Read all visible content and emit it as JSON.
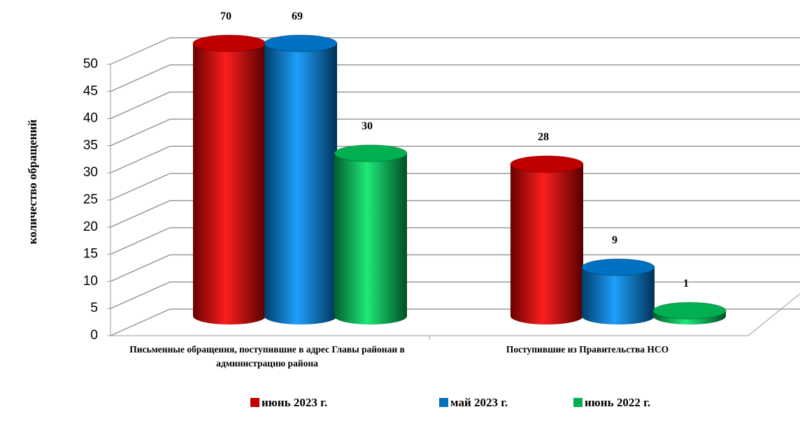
{
  "chart_data": {
    "type": "bar3d",
    "ylabel": "количество обращений",
    "categories": [
      "Письменные обращения, поступившие в адрес Главы районаи в администрацию района",
      "Поступившие из Правительства НСО"
    ],
    "series": [
      {
        "name": "июнь   2023 г.",
        "color": "#c00000",
        "values": [
          70,
          28
        ]
      },
      {
        "name": "май  2023 г.",
        "color": "#0070c0",
        "values": [
          69,
          9
        ]
      },
      {
        "name": "июнь  2022 г.",
        "color": "#00b050",
        "values": [
          30,
          1
        ]
      }
    ],
    "ylim": [
      0,
      50
    ],
    "yticks": [
      0,
      5,
      10,
      15,
      20,
      25,
      30,
      35,
      40,
      45,
      50
    ],
    "grid": true,
    "legend": "bottom"
  }
}
